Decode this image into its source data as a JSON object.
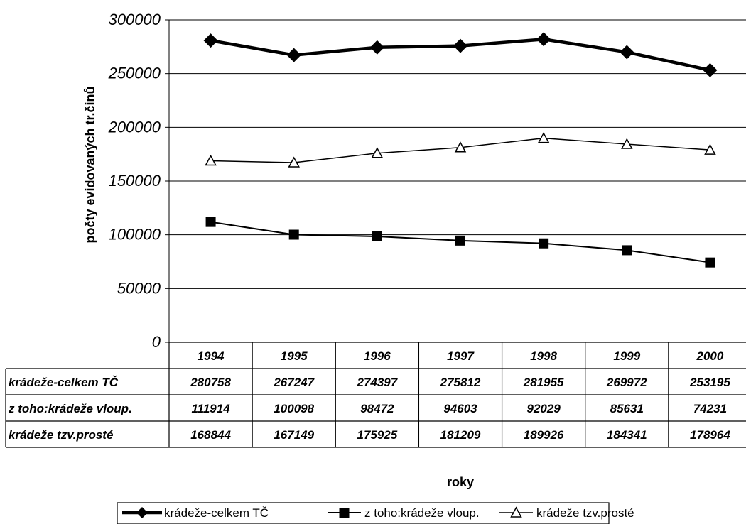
{
  "chart_data": {
    "type": "line",
    "title": "",
    "ylabel": "počty evidovaných tr.činů",
    "xlabel": "roky",
    "ylim": [
      0,
      300000
    ],
    "yticks": [
      "0",
      "50000",
      "100000",
      "150000",
      "200000",
      "250000",
      "300000"
    ],
    "categories": [
      "1994",
      "1995",
      "1996",
      "1997",
      "1998",
      "1999",
      "2000"
    ],
    "series": [
      {
        "name": "krádeže-celkem TČ",
        "table_label": "krádeže-celkem TČ",
        "marker": "diamond",
        "color": "#000000",
        "values": [
          280758,
          267247,
          274397,
          275812,
          281955,
          269972,
          253195
        ]
      },
      {
        "name": "z toho:krádeže vloup.",
        "table_label": "z toho:krádeže vloup.",
        "marker": "square",
        "color": "#000000",
        "values": [
          111914,
          100098,
          98472,
          94603,
          92029,
          85631,
          74231
        ]
      },
      {
        "name": "krádeže tzv.prosté",
        "table_label": "krádeže tzv.prosté",
        "marker": "triangle",
        "color": "#000000",
        "values": [
          168844,
          167149,
          175925,
          181209,
          189926,
          184341,
          178964
        ]
      }
    ],
    "grid": true,
    "legend_position": "bottom",
    "data_table": true
  }
}
